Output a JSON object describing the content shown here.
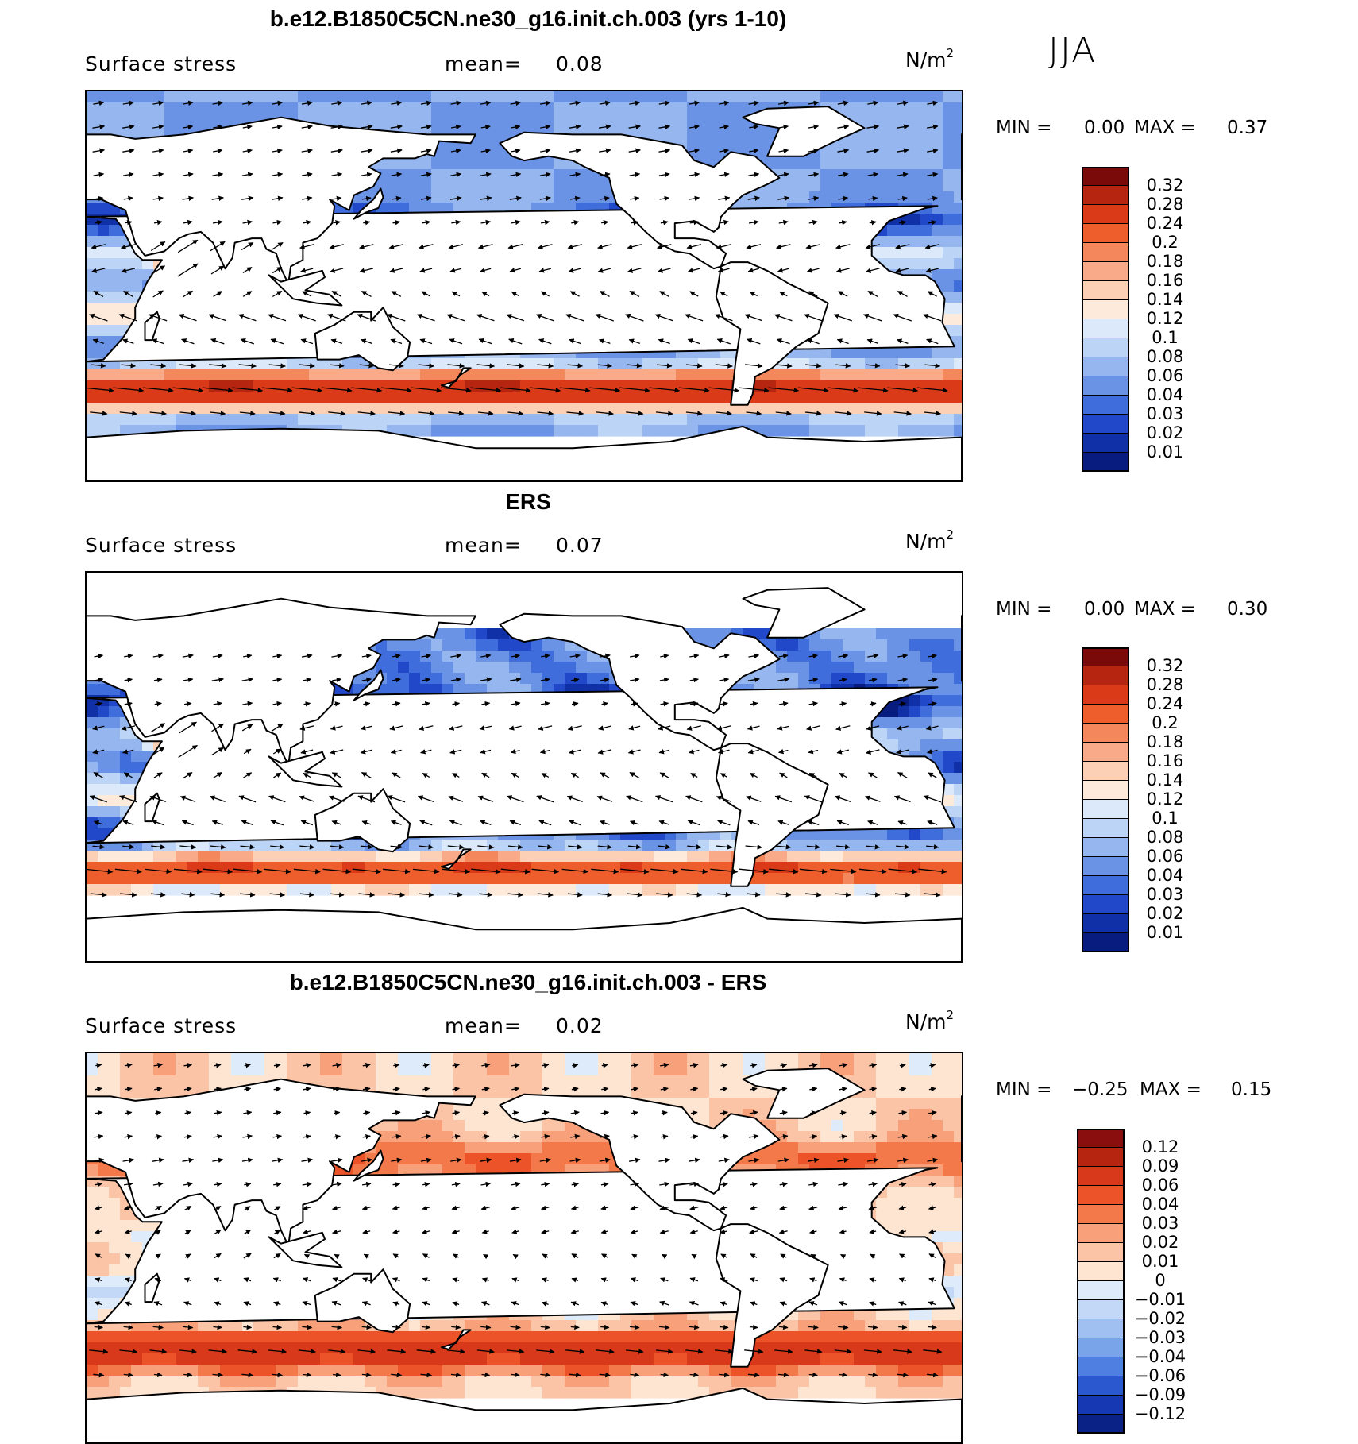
{
  "season": "JJA",
  "panels": [
    {
      "title": "b.e12.B1850C5CN.ne30_g16.init.ch.003 (yrs 1-10)",
      "variable": "Surface stress",
      "mean_label": "mean=",
      "mean_value": "0.08",
      "units": "N/m",
      "units_exp": "2",
      "min_label": "MIN =",
      "min_value": "0.00",
      "max_label": "MAX =",
      "max_value": "0.37",
      "colorbar": {
        "levels": [
          "0.32",
          "0.28",
          "0.24",
          "0.2",
          "0.18",
          "0.16",
          "0.14",
          "0.12",
          "0.1",
          "0.08",
          "0.06",
          "0.04",
          "0.03",
          "0.02",
          "0.01"
        ],
        "colors": [
          "#7a0a0a",
          "#b52510",
          "#db3a18",
          "#ee5e2c",
          "#f5875c",
          "#f9ab89",
          "#fcd0b5",
          "#fdeadb",
          "#dbe9fa",
          "#bcd4f5",
          "#95b6ee",
          "#6a93e6",
          "#3f6ddc",
          "#2148c8",
          "#1030a8",
          "#081c80"
        ]
      }
    },
    {
      "title": "ERS",
      "variable": "Surface stress",
      "mean_label": "mean=",
      "mean_value": "0.07",
      "units": "N/m",
      "units_exp": "2",
      "min_label": "MIN =",
      "min_value": "0.00",
      "max_label": "MAX =",
      "max_value": "0.30",
      "colorbar": {
        "levels": [
          "0.32",
          "0.28",
          "0.24",
          "0.2",
          "0.18",
          "0.16",
          "0.14",
          "0.12",
          "0.1",
          "0.08",
          "0.06",
          "0.04",
          "0.03",
          "0.02",
          "0.01"
        ],
        "colors": [
          "#7a0a0a",
          "#b52510",
          "#db3a18",
          "#ee5e2c",
          "#f5875c",
          "#f9ab89",
          "#fcd0b5",
          "#fdeadb",
          "#dbe9fa",
          "#bcd4f5",
          "#95b6ee",
          "#6a93e6",
          "#3f6ddc",
          "#2148c8",
          "#1030a8",
          "#081c80"
        ]
      }
    },
    {
      "title": "b.e12.B1850C5CN.ne30_g16.init.ch.003 - ERS",
      "variable": "Surface stress",
      "mean_label": "mean=",
      "mean_value": "0.02",
      "units": "N/m",
      "units_exp": "2",
      "min_label": "MIN =",
      "min_value": "−0.25",
      "max_label": "MAX =",
      "max_value": "0.15",
      "colorbar": {
        "levels": [
          "0.12",
          "0.09",
          "0.06",
          "0.04",
          "0.03",
          "0.02",
          "0.01",
          "0",
          "−0.01",
          "−0.02",
          "−0.03",
          "−0.04",
          "−0.06",
          "−0.09",
          "−0.12"
        ],
        "colors": [
          "#8a0e0e",
          "#b52510",
          "#d8391a",
          "#ec5328",
          "#f3794a",
          "#f8a07a",
          "#fbc4a6",
          "#fde5d2",
          "#deebfa",
          "#c3d8f6",
          "#9fc0f1",
          "#7aa4ea",
          "#4f7fe0",
          "#2c58cf",
          "#1638b2",
          "#0a2285"
        ]
      }
    }
  ]
}
